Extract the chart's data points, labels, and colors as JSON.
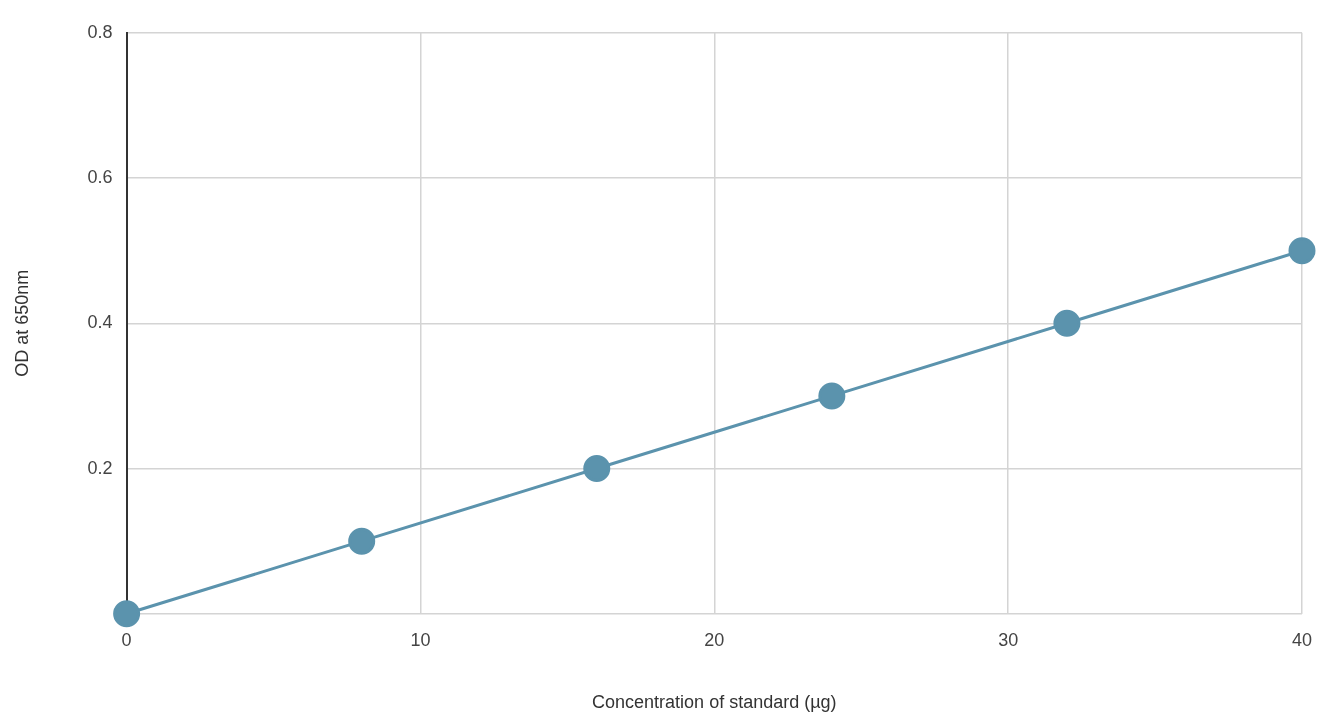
{
  "chart_data": {
    "type": "line",
    "xlabel": "Concentration of standard (µg)",
    "ylabel": "OD at 650nm",
    "x": [
      0,
      8,
      16,
      24,
      32,
      40
    ],
    "series": [
      {
        "color": "#5b93ad",
        "values": [
          0,
          0.1,
          0.2,
          0.3,
          0.4,
          0.5
        ]
      }
    ],
    "xlim": [
      0,
      40
    ],
    "ylim": [
      0,
      0.8
    ],
    "xticks": [
      0,
      10,
      20,
      30,
      40
    ],
    "yticks": [
      {
        "value": 0,
        "label": null
      },
      0.2,
      0.4,
      0.6,
      0.8
    ],
    "grid": true,
    "marker": "circle"
  }
}
